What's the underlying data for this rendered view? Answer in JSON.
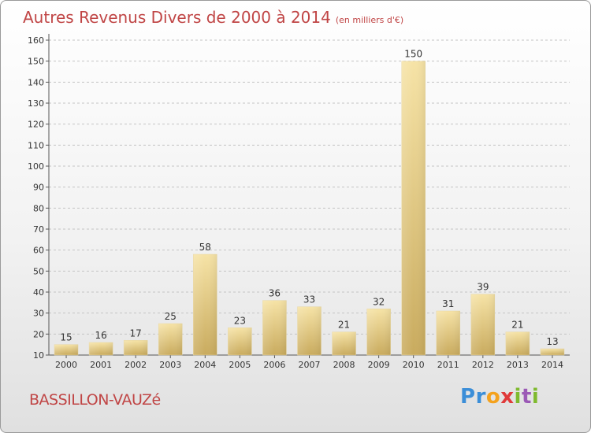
{
  "title": "Autres Revenus Divers de 2000 à 2014",
  "subtitle": "(en milliers d'€)",
  "location": "BASSILLON-VAUZé",
  "logo": {
    "brand": "Proxiti"
  },
  "colors": {
    "title": "#c04545",
    "bar_light": "#f4dc9a",
    "bar_dark": "#c9ac60",
    "grid": "#c8c8c8"
  },
  "chart_data": {
    "type": "bar",
    "categories": [
      "2000",
      "2001",
      "2002",
      "2003",
      "2004",
      "2005",
      "2006",
      "2007",
      "2008",
      "2009",
      "2010",
      "2011",
      "2012",
      "2013",
      "2014"
    ],
    "values": [
      15,
      16,
      17,
      25,
      58,
      23,
      36,
      33,
      21,
      32,
      150,
      31,
      39,
      21,
      13
    ],
    "ylim": [
      10,
      160
    ],
    "yticks": [
      10,
      20,
      30,
      40,
      50,
      60,
      70,
      80,
      90,
      100,
      110,
      120,
      130,
      140,
      150,
      160
    ],
    "xlabel": "",
    "ylabel": "",
    "grid": "horizontal dashed"
  }
}
